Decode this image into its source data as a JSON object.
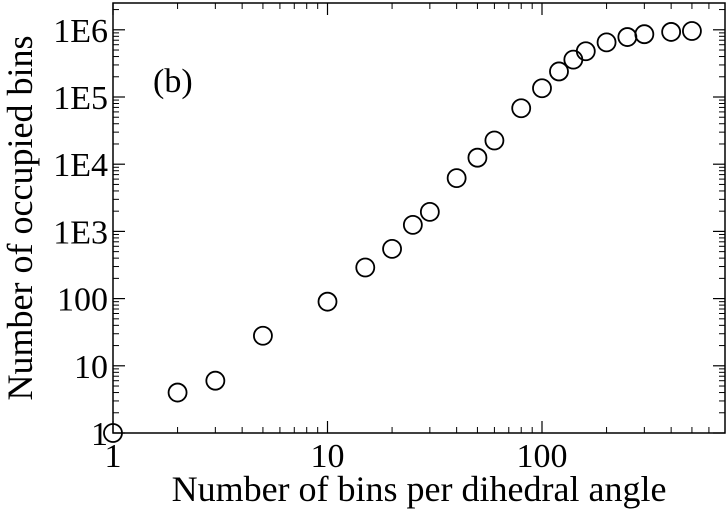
{
  "chart_data": {
    "type": "scatter",
    "title": "",
    "annotation": "(b)",
    "xlabel": "Number of bins per dihedral angle",
    "ylabel": "Number of occupied bins",
    "x_scale": "log",
    "y_scale": "log",
    "xlim": [
      1,
      600
    ],
    "ylim": [
      1,
      2000000
    ],
    "grid": false,
    "legend": "none",
    "marker": "open-circle",
    "x_ticks": [
      {
        "value": 1,
        "label": "1"
      },
      {
        "value": 10,
        "label": "10"
      },
      {
        "value": 100,
        "label": "100"
      }
    ],
    "y_ticks": [
      {
        "value": 1,
        "label": "1"
      },
      {
        "value": 10,
        "label": "10"
      },
      {
        "value": 100,
        "label": "100"
      },
      {
        "value": 1000,
        "label": "1E3"
      },
      {
        "value": 10000,
        "label": "1E4"
      },
      {
        "value": 100000,
        "label": "1E5"
      },
      {
        "value": 1000000,
        "label": "1E6"
      }
    ],
    "series": [
      {
        "points": [
          {
            "x": 1,
            "y": 1
          },
          {
            "x": 2,
            "y": 4
          },
          {
            "x": 3,
            "y": 6
          },
          {
            "x": 5,
            "y": 28
          },
          {
            "x": 10,
            "y": 90
          },
          {
            "x": 15,
            "y": 290
          },
          {
            "x": 20,
            "y": 550
          },
          {
            "x": 25,
            "y": 1250
          },
          {
            "x": 30,
            "y": 1950
          },
          {
            "x": 40,
            "y": 6200
          },
          {
            "x": 50,
            "y": 12500
          },
          {
            "x": 60,
            "y": 22500
          },
          {
            "x": 80,
            "y": 68000
          },
          {
            "x": 100,
            "y": 135000
          },
          {
            "x": 120,
            "y": 240000
          },
          {
            "x": 140,
            "y": 360000
          },
          {
            "x": 160,
            "y": 480000
          },
          {
            "x": 200,
            "y": 650000
          },
          {
            "x": 250,
            "y": 780000
          },
          {
            "x": 300,
            "y": 860000
          },
          {
            "x": 400,
            "y": 930000
          },
          {
            "x": 500,
            "y": 960000
          }
        ]
      }
    ]
  }
}
